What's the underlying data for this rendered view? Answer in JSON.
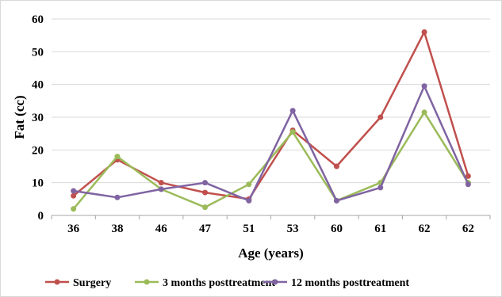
{
  "chart_data": {
    "type": "line",
    "title": "",
    "xlabel": "Age (years)",
    "ylabel": "Fat (cc)",
    "categories": [
      "36",
      "38",
      "46",
      "47",
      "51",
      "53",
      "60",
      "61",
      "62",
      "62"
    ],
    "ylim": [
      0,
      60
    ],
    "yticks": [
      "0",
      "10",
      "20",
      "30",
      "40",
      "50",
      "60"
    ],
    "grid": true,
    "legend_position": "bottom",
    "series": [
      {
        "name": "Surgery",
        "color": "#c0504d",
        "values": [
          6,
          17,
          10,
          7,
          5,
          26,
          15,
          30,
          56,
          12
        ]
      },
      {
        "name": "3 months posttreatment",
        "color": "#9bbb59",
        "values": [
          2,
          18,
          8,
          2.5,
          9.5,
          25.5,
          4.5,
          10,
          31.5,
          10
        ]
      },
      {
        "name": "12 months posttreatment",
        "color": "#8064a2",
        "values": [
          7.5,
          5.5,
          8,
          10,
          4.5,
          32,
          4.5,
          8.5,
          39.5,
          9.5
        ]
      }
    ]
  }
}
